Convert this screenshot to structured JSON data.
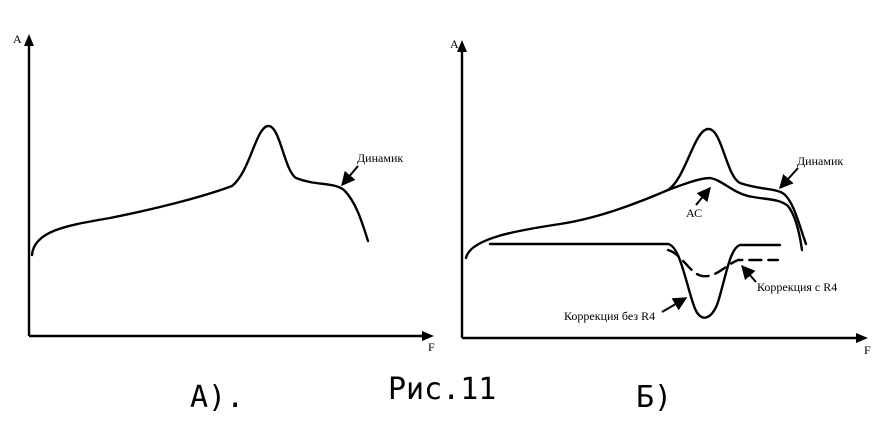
{
  "figure": {
    "caption": "Рис.11",
    "left": {
      "label": "А).",
      "y_axis": "A",
      "x_axis": "F",
      "curve_label": "Динамик"
    },
    "right": {
      "label": "Б)",
      "y_axis": "A",
      "x_axis": "F",
      "curve_label_speaker": "Динамик",
      "curve_label_system": "АС",
      "curve_label_corr_with_r4": "Коррекция с R4",
      "curve_label_corr_without_r4": "Коррекция без R4"
    }
  }
}
